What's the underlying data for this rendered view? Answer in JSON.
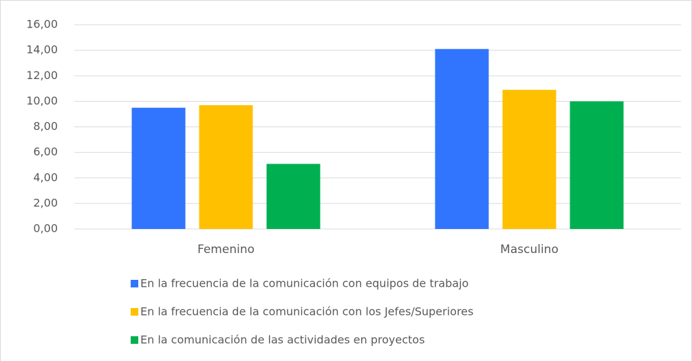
{
  "chart_data": {
    "type": "bar",
    "categories": [
      "Femenino",
      "Masculino"
    ],
    "series": [
      {
        "name": "En la frecuencia de la comunicación con equipos de trabajo",
        "color": "#3174fe",
        "values": [
          9.5,
          14.1
        ]
      },
      {
        "name": "En la frecuencia de la comunicación con los Jefes/Superiores",
        "color": "#ffc000",
        "values": [
          9.7,
          10.9
        ]
      },
      {
        "name": "En la comunicación de las actividades en proyectos",
        "color": "#00b050",
        "values": [
          5.1,
          10.0
        ]
      }
    ],
    "ylim": [
      0,
      16
    ],
    "yticks": [
      {
        "value": 0,
        "label": "0,00"
      },
      {
        "value": 2,
        "label": "2,00"
      },
      {
        "value": 4,
        "label": "4,00"
      },
      {
        "value": 6,
        "label": "6,00"
      },
      {
        "value": 8,
        "label": "8,00"
      },
      {
        "value": 10,
        "label": "10,00"
      },
      {
        "value": 12,
        "label": "12,00"
      },
      {
        "value": 14,
        "label": "14,00"
      },
      {
        "value": 16,
        "label": "16,00"
      }
    ],
    "grid": true,
    "legend": "bottom"
  }
}
